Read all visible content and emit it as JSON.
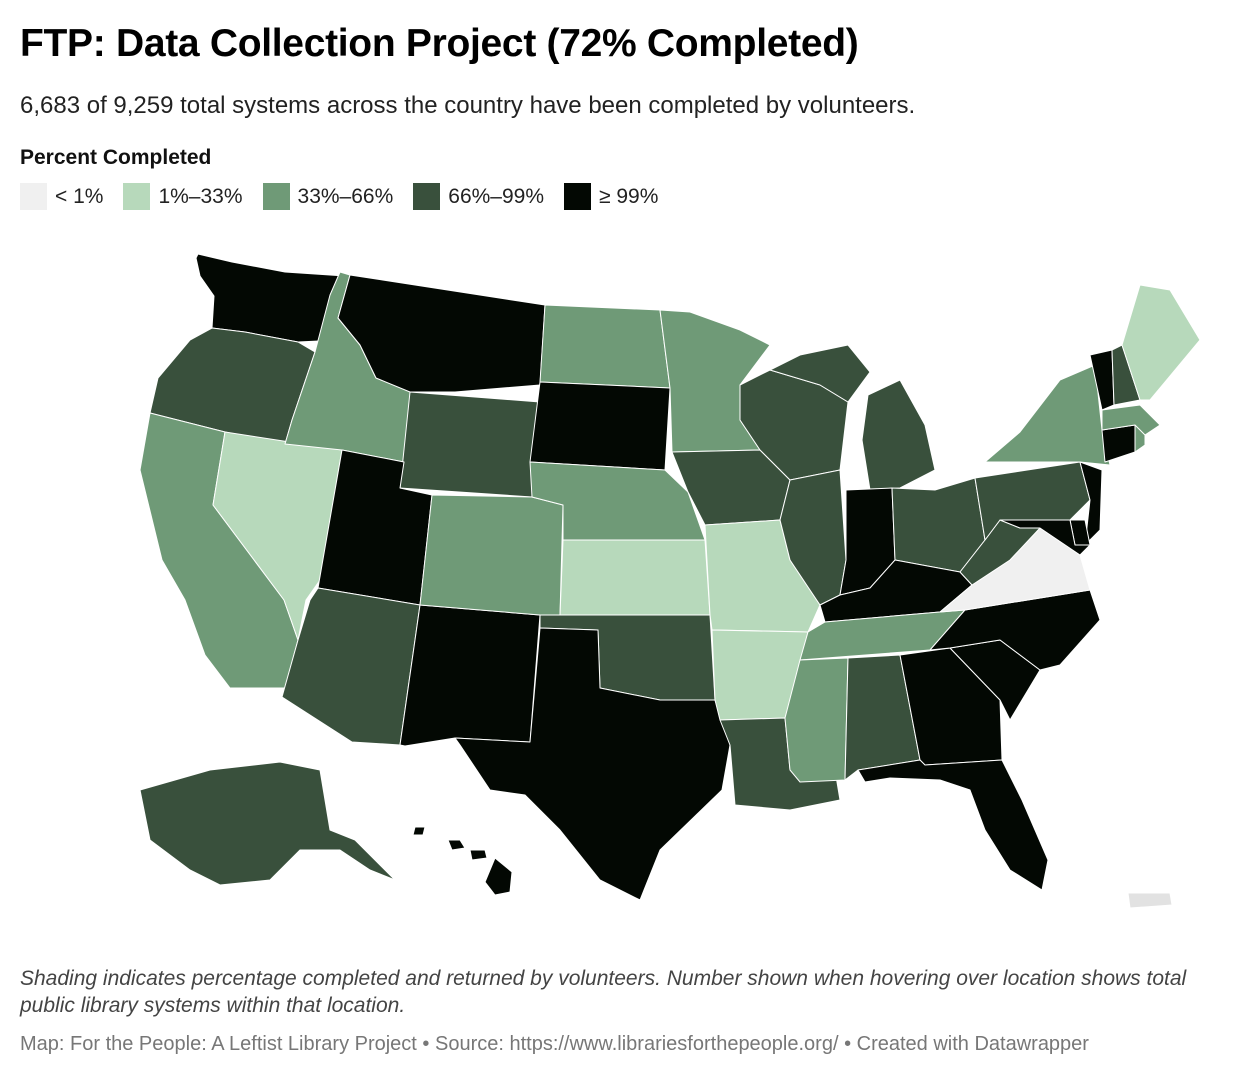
{
  "title": "FTP: Data Collection Project (72% Completed)",
  "subtitle": "6,683 of 9,259 total systems across the country have been completed by volunteers.",
  "legend": {
    "title": "Percent Completed",
    "items": [
      {
        "label": "< 1%",
        "color": "#f0f0f0"
      },
      {
        "label": "1%–33%",
        "color": "#b7d9bb"
      },
      {
        "label": "33%–66%",
        "color": "#6f9a77"
      },
      {
        "label": "66%–99%",
        "color": "#39503c"
      },
      {
        "label": "≥ 99%",
        "color": "#030803"
      }
    ]
  },
  "map": {
    "bins": {
      "WA": "≥ 99%",
      "OR": "66%–99%",
      "CA": "33%–66%",
      "NV": "1%–33%",
      "ID": "33%–66%",
      "MT": "≥ 99%",
      "WY": "66%–99%",
      "UT": "≥ 99%",
      "AZ": "66%–99%",
      "NM": "≥ 99%",
      "CO": "33%–66%",
      "ND": "33%–66%",
      "SD": "≥ 99%",
      "NE": "33%–66%",
      "KS": "1%–33%",
      "OK": "66%–99%",
      "TX": "≥ 99%",
      "MN": "33%–66%",
      "IA": "66%–99%",
      "MO": "1%–33%",
      "AR": "1%–33%",
      "LA": "66%–99%",
      "WI": "66%–99%",
      "IL": "66%–99%",
      "MI": "66%–99%",
      "IN": "≥ 99%",
      "OH": "66%–99%",
      "KY": "≥ 99%",
      "TN": "33%–66%",
      "MS": "33%–66%",
      "AL": "66%–99%",
      "GA": "≥ 99%",
      "FL": "≥ 99%",
      "SC": "≥ 99%",
      "NC": "≥ 99%",
      "VA": "< 1%",
      "WV": "66%–99%",
      "PA": "66%–99%",
      "NY": "33%–66%",
      "NJ": "≥ 99%",
      "DE": "≥ 99%",
      "MD": "≥ 99%",
      "CT": "≥ 99%",
      "RI": "33%–66%",
      "MA": "33%–66%",
      "VT": "≥ 99%",
      "NH": "66%–99%",
      "ME": "1%–33%",
      "AK": "66%–99%",
      "HI": "≥ 99%",
      "PR": "< 1%"
    }
  },
  "notes": "Shading indicates percentage completed and returned by volunteers. Number shown when hovering over location shows total public library systems within that location.",
  "footer": "Map: For the People: A Leftist Library Project • Source: https://www.librariesforthepeople.org/ • Created with Datawrapper"
}
